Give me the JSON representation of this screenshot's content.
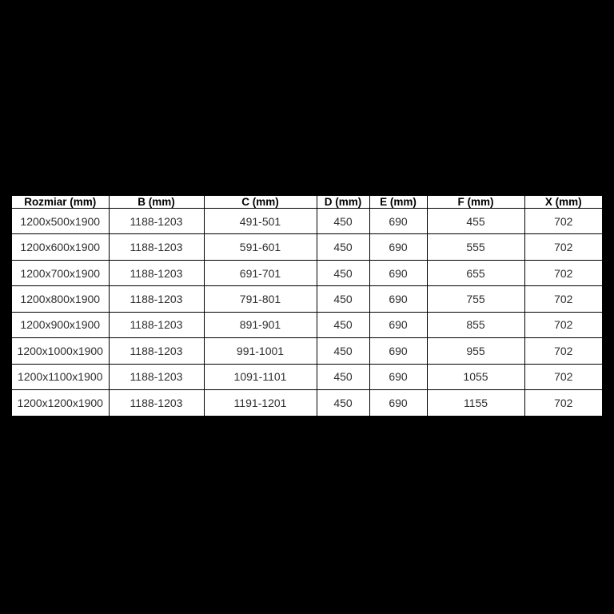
{
  "table": {
    "headers": [
      "Rozmiar (mm)",
      "B (mm)",
      "C (mm)",
      "D (mm)",
      "E (mm)",
      "F (mm)",
      "X (mm)"
    ],
    "rows": [
      [
        "1200x500x1900",
        "1188-1203",
        "491-501",
        "450",
        "690",
        "455",
        "702"
      ],
      [
        "1200x600x1900",
        "1188-1203",
        "591-601",
        "450",
        "690",
        "555",
        "702"
      ],
      [
        "1200x700x1900",
        "1188-1203",
        "691-701",
        "450",
        "690",
        "655",
        "702"
      ],
      [
        "1200x800x1900",
        "1188-1203",
        "791-801",
        "450",
        "690",
        "755",
        "702"
      ],
      [
        "1200x900x1900",
        "1188-1203",
        "891-901",
        "450",
        "690",
        "855",
        "702"
      ],
      [
        "1200x1000x1900",
        "1188-1203",
        "991-1001",
        "450",
        "690",
        "955",
        "702"
      ],
      [
        "1200x1100x1900",
        "1188-1203",
        "1091-1101",
        "450",
        "690",
        "1055",
        "702"
      ],
      [
        "1200x1200x1900",
        "1188-1203",
        "1191-1201",
        "450",
        "690",
        "1155",
        "702"
      ]
    ]
  },
  "colors": {
    "page_background": "#000000",
    "table_background": "#ffffff",
    "border": "#000000",
    "header_text": "#000000",
    "cell_text": "#2e2e2e"
  }
}
